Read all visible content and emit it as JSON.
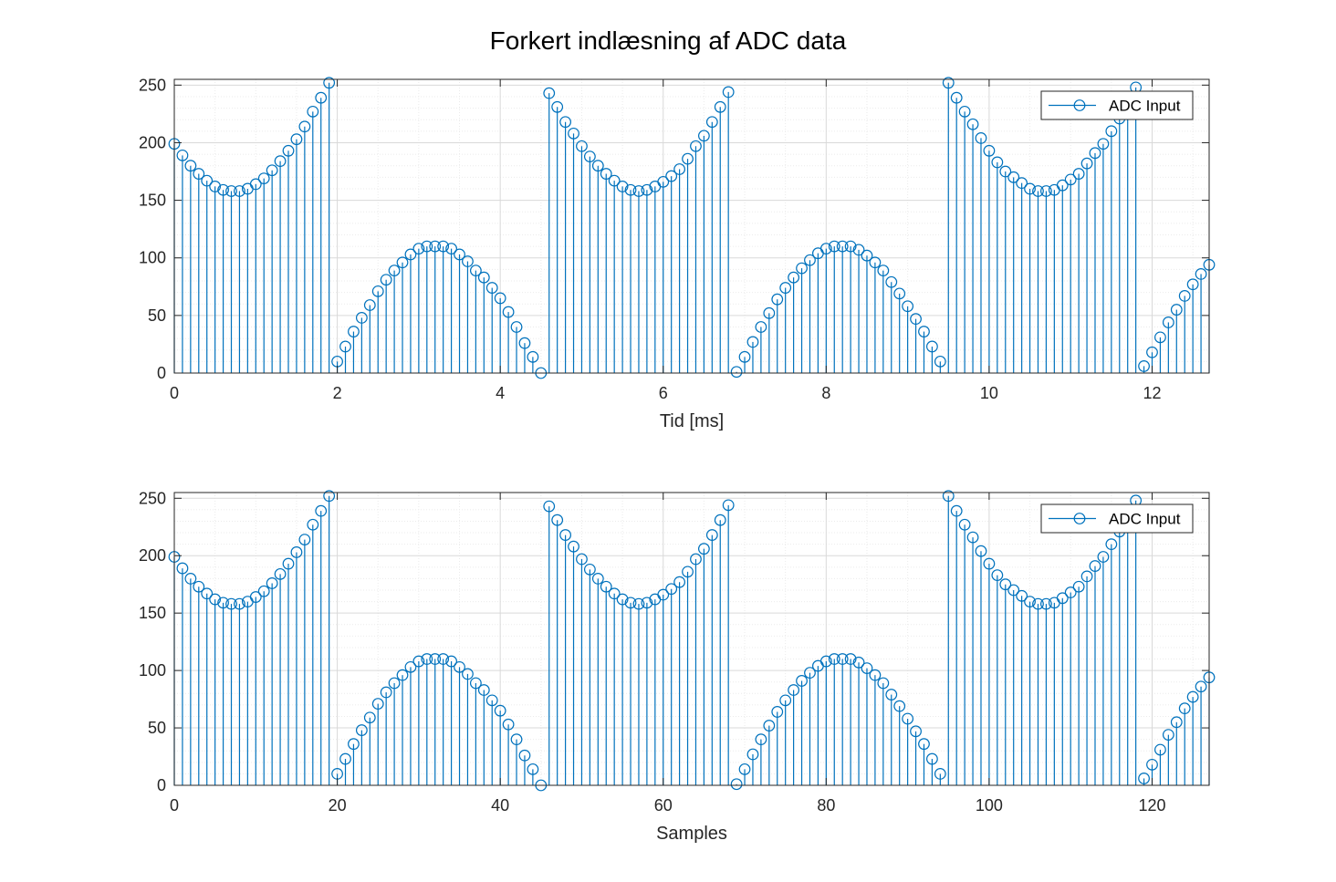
{
  "figure": {
    "title": "Forkert indlæsning af ADC data",
    "series_color": "#0072BD",
    "grid_major_color": "#d9d9d9",
    "grid_minor_color": "#ebebeb",
    "axis_color": "#262626",
    "background": "#ffffff"
  },
  "chart_data": [
    {
      "type": "stem",
      "xlabel": "Tid [ms]",
      "ylabel": "",
      "xlim": [
        0,
        12.7
      ],
      "ylim": [
        0,
        255
      ],
      "xticks": [
        0,
        2,
        4,
        6,
        8,
        10,
        12
      ],
      "xtick_labels": [
        "0",
        "2",
        "4",
        "6",
        "8",
        "10",
        "12"
      ],
      "yticks": [
        0,
        50,
        100,
        150,
        200,
        250
      ],
      "ytick_labels": [
        "0",
        "50",
        "100",
        "150",
        "200",
        "250"
      ],
      "grid": true,
      "minor_grid": true,
      "legend": {
        "placement": "top-right",
        "entries": [
          "ADC Input"
        ]
      },
      "x": [
        0,
        0.1,
        0.2,
        0.3,
        0.4,
        0.5,
        0.6,
        0.7,
        0.8,
        0.9,
        1.0,
        1.1,
        1.2,
        1.3,
        1.4,
        1.5,
        1.6,
        1.7,
        1.8,
        1.9,
        2.0,
        2.1,
        2.2,
        2.3,
        2.4,
        2.5,
        2.6,
        2.7,
        2.8,
        2.9,
        3.0,
        3.1,
        3.2,
        3.3,
        3.4,
        3.5,
        3.6,
        3.7,
        3.8,
        3.9,
        4.0,
        4.1,
        4.2,
        4.3,
        4.4,
        4.5,
        4.6,
        4.7,
        4.8,
        4.9,
        5.0,
        5.1,
        5.2,
        5.3,
        5.4,
        5.5,
        5.6,
        5.7,
        5.8,
        5.9,
        6.0,
        6.1,
        6.2,
        6.3,
        6.4,
        6.5,
        6.6,
        6.7,
        6.8,
        6.9,
        7.0,
        7.1,
        7.2,
        7.3,
        7.4,
        7.5,
        7.6,
        7.7,
        7.8,
        7.9,
        8.0,
        8.1,
        8.2,
        8.3,
        8.4,
        8.5,
        8.6,
        8.7,
        8.8,
        8.9,
        9.0,
        9.1,
        9.2,
        9.3,
        9.4,
        9.5,
        9.6,
        9.7,
        9.8,
        9.9,
        10.0,
        10.1,
        10.2,
        10.3,
        10.4,
        10.5,
        10.6,
        10.7,
        10.8,
        10.9,
        11.0,
        11.1,
        11.2,
        11.3,
        11.4,
        11.5,
        11.6,
        11.7,
        11.8,
        11.9,
        12.0,
        12.1,
        12.2,
        12.3,
        12.4,
        12.5,
        12.6,
        12.7
      ],
      "series": [
        {
          "name": "ADC Input",
          "values": [
            199,
            189,
            180,
            173,
            167,
            162,
            159,
            158,
            158,
            160,
            164,
            169,
            176,
            184,
            193,
            203,
            214,
            227,
            239,
            252,
            10,
            23,
            36,
            48,
            59,
            71,
            81,
            89,
            96,
            103,
            108,
            110,
            110,
            110,
            108,
            103,
            97,
            89,
            83,
            74,
            65,
            53,
            40,
            26,
            14,
            0,
            243,
            231,
            218,
            208,
            197,
            188,
            180,
            173,
            167,
            162,
            159,
            158,
            159,
            162,
            166,
            171,
            177,
            186,
            197,
            206,
            218,
            231,
            244,
            1,
            14,
            27,
            40,
            52,
            64,
            74,
            83,
            91,
            98,
            104,
            108,
            110,
            110,
            110,
            107,
            102,
            96,
            89,
            79,
            69,
            58,
            47,
            36,
            23,
            10,
            252,
            239,
            227,
            216,
            204,
            193,
            183,
            175,
            170,
            165,
            160,
            158,
            158,
            159,
            163,
            168,
            173,
            182,
            191,
            199,
            210,
            221,
            235,
            248,
            6,
            18,
            31,
            44,
            55,
            67,
            77,
            86,
            94
          ]
        }
      ]
    },
    {
      "type": "stem",
      "xlabel": "Samples",
      "ylabel": "",
      "xlim": [
        0,
        127
      ],
      "ylim": [
        0,
        255
      ],
      "xticks": [
        0,
        20,
        40,
        60,
        80,
        100,
        120
      ],
      "xtick_labels": [
        "0",
        "20",
        "40",
        "60",
        "80",
        "100",
        "120"
      ],
      "yticks": [
        0,
        50,
        100,
        150,
        200,
        250
      ],
      "ytick_labels": [
        "0",
        "50",
        "100",
        "150",
        "200",
        "250"
      ],
      "grid": true,
      "minor_grid": true,
      "legend": {
        "placement": "top-right",
        "entries": [
          "ADC Input"
        ]
      },
      "x": [
        0,
        1,
        2,
        3,
        4,
        5,
        6,
        7,
        8,
        9,
        10,
        11,
        12,
        13,
        14,
        15,
        16,
        17,
        18,
        19,
        20,
        21,
        22,
        23,
        24,
        25,
        26,
        27,
        28,
        29,
        30,
        31,
        32,
        33,
        34,
        35,
        36,
        37,
        38,
        39,
        40,
        41,
        42,
        43,
        44,
        45,
        46,
        47,
        48,
        49,
        50,
        51,
        52,
        53,
        54,
        55,
        56,
        57,
        58,
        59,
        60,
        61,
        62,
        63,
        64,
        65,
        66,
        67,
        68,
        69,
        70,
        71,
        72,
        73,
        74,
        75,
        76,
        77,
        78,
        79,
        80,
        81,
        82,
        83,
        84,
        85,
        86,
        87,
        88,
        89,
        90,
        91,
        92,
        93,
        94,
        95,
        96,
        97,
        98,
        99,
        100,
        101,
        102,
        103,
        104,
        105,
        106,
        107,
        108,
        109,
        110,
        111,
        112,
        113,
        114,
        115,
        116,
        117,
        118,
        119,
        120,
        121,
        122,
        123,
        124,
        125,
        126,
        127
      ],
      "series": [
        {
          "name": "ADC Input",
          "values": [
            199,
            189,
            180,
            173,
            167,
            162,
            159,
            158,
            158,
            160,
            164,
            169,
            176,
            184,
            193,
            203,
            214,
            227,
            239,
            252,
            10,
            23,
            36,
            48,
            59,
            71,
            81,
            89,
            96,
            103,
            108,
            110,
            110,
            110,
            108,
            103,
            97,
            89,
            83,
            74,
            65,
            53,
            40,
            26,
            14,
            0,
            243,
            231,
            218,
            208,
            197,
            188,
            180,
            173,
            167,
            162,
            159,
            158,
            159,
            162,
            166,
            171,
            177,
            186,
            197,
            206,
            218,
            231,
            244,
            1,
            14,
            27,
            40,
            52,
            64,
            74,
            83,
            91,
            98,
            104,
            108,
            110,
            110,
            110,
            107,
            102,
            96,
            89,
            79,
            69,
            58,
            47,
            36,
            23,
            10,
            252,
            239,
            227,
            216,
            204,
            193,
            183,
            175,
            170,
            165,
            160,
            158,
            158,
            159,
            163,
            168,
            173,
            182,
            191,
            199,
            210,
            221,
            235,
            248,
            6,
            18,
            31,
            44,
            55,
            67,
            77,
            86,
            94
          ]
        }
      ]
    }
  ]
}
